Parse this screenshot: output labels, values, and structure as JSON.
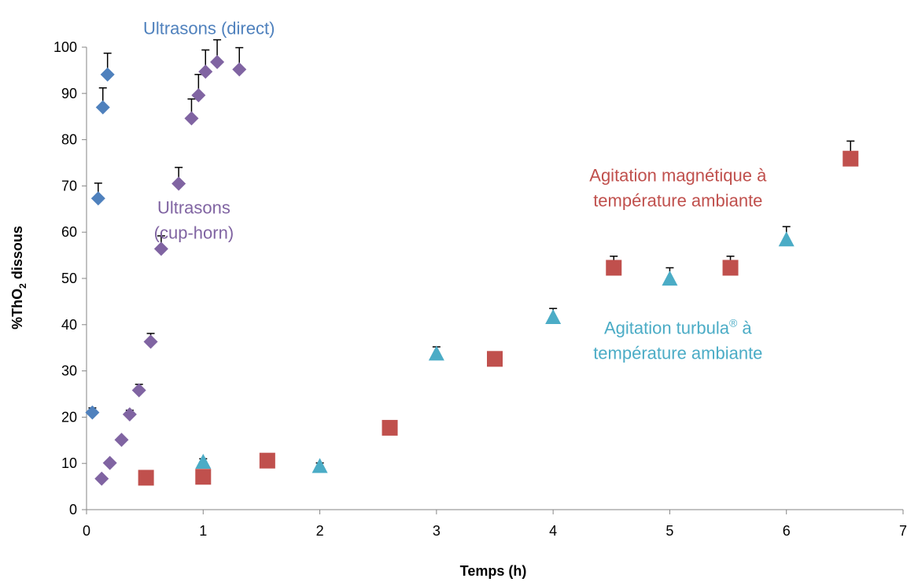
{
  "chart_data": {
    "type": "scatter",
    "xlabel": "Temps (h)",
    "ylabel": {
      "prefix": "%ThO",
      "sub": "2",
      "suffix": " dissous"
    },
    "xlim": [
      0,
      7
    ],
    "ylim": [
      0,
      100
    ],
    "xticks": [
      0,
      1,
      2,
      3,
      4,
      5,
      6,
      7
    ],
    "yticks": [
      0,
      10,
      20,
      30,
      40,
      50,
      60,
      70,
      80,
      90,
      100
    ],
    "grid": false,
    "legend": "none",
    "annotations": [
      {
        "lines": [
          "Ultrasons (direct)"
        ],
        "color": "#4F81BD",
        "x": 1.05,
        "y": 102.8
      },
      {
        "lines": [
          "Ultrasons",
          "(cup-horn)"
        ],
        "color": "#8064A2",
        "x": 0.92,
        "y": 64.0
      },
      {
        "lines": [
          "Agitation magnétique à",
          "température ambiante"
        ],
        "color": "#C0504D",
        "x": 5.07,
        "y": 71.0
      },
      {
        "lines": [
          {
            "text": "Agitation turbula",
            "sup": "®",
            "after": " à"
          },
          "température ambiante"
        ],
        "color": "#4BACC6",
        "x": 5.07,
        "y": 38.0
      }
    ],
    "series": [
      {
        "marker": "diamond",
        "color": "#4F81BD",
        "points": [
          {
            "x": 0.05,
            "y": 21,
            "err": 1
          },
          {
            "x": 0.1,
            "y": 67.3,
            "err": 3.3
          },
          {
            "x": 0.14,
            "y": 87,
            "err": 4.2
          },
          {
            "x": 0.18,
            "y": 94.1,
            "err": 4.6
          }
        ]
      },
      {
        "marker": "diamond",
        "color": "#8064A2",
        "points": [
          {
            "x": 0.13,
            "y": 6.7,
            "err": 0
          },
          {
            "x": 0.2,
            "y": 10.1,
            "err": 0
          },
          {
            "x": 0.3,
            "y": 15.1,
            "err": 0
          },
          {
            "x": 0.37,
            "y": 20.6,
            "err": 0.9
          },
          {
            "x": 0.45,
            "y": 25.8,
            "err": 1.3
          },
          {
            "x": 0.55,
            "y": 36.3,
            "err": 1.8
          },
          {
            "x": 0.64,
            "y": 56.4,
            "err": 2.8
          },
          {
            "x": 0.79,
            "y": 70.5,
            "err": 3.5
          },
          {
            "x": 0.9,
            "y": 84.6,
            "err": 4.2
          },
          {
            "x": 0.96,
            "y": 89.6,
            "err": 4.5
          },
          {
            "x": 1.02,
            "y": 94.7,
            "err": 4.7
          },
          {
            "x": 1.12,
            "y": 96.8,
            "err": 4.8
          },
          {
            "x": 1.31,
            "y": 95.2,
            "err": 4.7
          }
        ]
      },
      {
        "marker": "square",
        "color": "#C0504D",
        "points": [
          {
            "x": 0.51,
            "y": 6.9,
            "err": 0
          },
          {
            "x": 1.0,
            "y": 7.1,
            "err": 0
          },
          {
            "x": 1.55,
            "y": 10.6,
            "err": 0
          },
          {
            "x": 2.6,
            "y": 17.7,
            "err": 0
          },
          {
            "x": 3.5,
            "y": 32.6,
            "err": 0
          },
          {
            "x": 4.52,
            "y": 52.3,
            "err": 2.5
          },
          {
            "x": 5.52,
            "y": 52.3,
            "err": 2.5
          },
          {
            "x": 6.55,
            "y": 75.9,
            "err": 3.8
          }
        ]
      },
      {
        "marker": "triangle",
        "color": "#4BACC6",
        "points": [
          {
            "x": 1.0,
            "y": 10.2,
            "err": 0.8
          },
          {
            "x": 2.0,
            "y": 9.3,
            "err": 0.8
          },
          {
            "x": 3.0,
            "y": 33.6,
            "err": 1.6
          },
          {
            "x": 4.0,
            "y": 41.5,
            "err": 2.0
          },
          {
            "x": 5.0,
            "y": 49.8,
            "err": 2.5
          },
          {
            "x": 6.0,
            "y": 58.3,
            "err": 2.9
          }
        ]
      }
    ]
  }
}
